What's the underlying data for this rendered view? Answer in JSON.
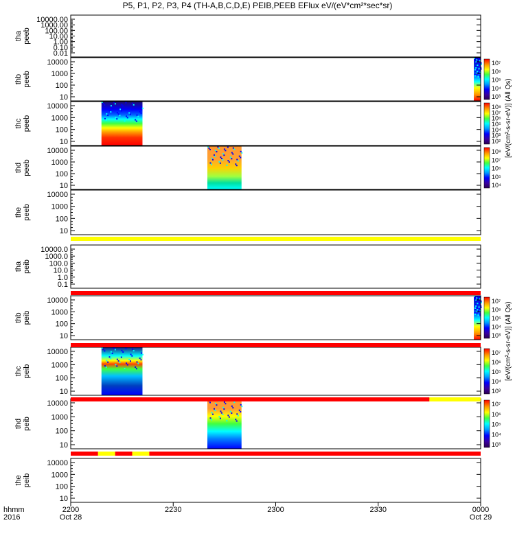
{
  "title": "P5, P1, P2, P3, P4 (TH-A,B,C,D,E) PEIB,PEEB EFlux eV/(eV*cm²*sec*sr)",
  "units_label": "[eV/(cm²-s-sr-eV)] (All Qs)",
  "colors": {
    "red": "#ff0000",
    "yellow": "#ffff00",
    "orange": "#ff9933",
    "cyan": "#00ffff",
    "blue": "#0000ff",
    "navy": "#1a1a80",
    "purple": "#6b2fa0",
    "black": "#000000"
  },
  "chart_data": [
    {
      "type": "heatmap",
      "ylabel": [
        "tha",
        "peeb"
      ],
      "ticks": [
        "10000.00",
        "1000.00",
        "100.00",
        "10.00",
        "1.00",
        "0.10",
        "0.01"
      ],
      "log": true,
      "data": "none",
      "colorbar": false
    },
    {
      "type": "heatmap",
      "ylabel": [
        "thb",
        "peeb"
      ],
      "ticks": [
        "10000",
        "1000",
        "100",
        "10"
      ],
      "log": true,
      "colorbar": true,
      "data_interval": [
        "2358",
        "2400"
      ]
    },
    {
      "type": "heatmap",
      "ylabel": [
        "thc",
        "peeb"
      ],
      "ticks": [
        "10000",
        "1000",
        "100",
        "10"
      ],
      "log": true,
      "colorbar": true,
      "data_interval": [
        "2209",
        "2221"
      ]
    },
    {
      "type": "heatmap",
      "ylabel": [
        "thd",
        "peeb"
      ],
      "ticks": [
        "10000",
        "1000",
        "100",
        "10"
      ],
      "log": true,
      "colorbar": true,
      "data_interval": [
        "2240",
        "2250"
      ]
    },
    {
      "type": "heatmap",
      "ylabel": [
        "the",
        "peeb"
      ],
      "ticks": [
        "10000",
        "1000",
        "100",
        "10"
      ],
      "log": true,
      "colorbar": false,
      "data": "none"
    },
    {
      "type": "heatmap",
      "ylabel": [
        "tha",
        "peib"
      ],
      "ticks": [
        "10000.0",
        "1000.0",
        "100.0",
        "10.0",
        "1.0",
        "0.1"
      ],
      "log": true,
      "colorbar": false,
      "data": "none"
    },
    {
      "type": "heatmap",
      "ylabel": [
        "thb",
        "peib"
      ],
      "ticks": [
        "10000",
        "1000",
        "100",
        "10"
      ],
      "log": true,
      "colorbar": true,
      "data_interval": [
        "2358",
        "2400"
      ]
    },
    {
      "type": "heatmap",
      "ylabel": [
        "thc",
        "peib"
      ],
      "ticks": [
        "10000",
        "1000",
        "100",
        "10"
      ],
      "log": true,
      "colorbar": true,
      "data_interval": [
        "2209",
        "2221"
      ]
    },
    {
      "type": "heatmap",
      "ylabel": [
        "thd",
        "peib"
      ],
      "ticks": [
        "10000",
        "1000",
        "100",
        "10"
      ],
      "log": true,
      "colorbar": true,
      "data_interval": [
        "2240",
        "2250"
      ]
    },
    {
      "type": "heatmap",
      "ylabel": [
        "the",
        "peib"
      ],
      "ticks": [
        "10000",
        "1000",
        "100",
        "10"
      ],
      "log": true,
      "colorbar": false,
      "data": "none"
    }
  ],
  "colorbars": [
    {
      "panel": 1,
      "ticks": [
        "10⁷",
        "10⁶",
        "10⁵",
        "10⁴",
        "10³"
      ]
    },
    {
      "panel": 2,
      "ticks": [
        "10⁸",
        "10⁷",
        "10⁶",
        "10⁵",
        "10⁴",
        "10³",
        "10²"
      ]
    },
    {
      "panel": 3,
      "ticks": [
        "10⁸",
        "10⁷",
        "10⁶",
        "10⁵",
        "10⁴"
      ]
    },
    {
      "panel": 6,
      "ticks": [
        "10⁷",
        "10⁶",
        "10⁵",
        "10⁴",
        "10³"
      ]
    },
    {
      "panel": 7,
      "ticks": [
        "10⁷",
        "10⁶",
        "10⁵",
        "10⁴",
        "10³"
      ]
    },
    {
      "panel": 8,
      "ticks": [
        "10⁷",
        "10⁶",
        "10⁵",
        "10⁴",
        "10³"
      ]
    }
  ],
  "status_bars": [
    {
      "after_panel": 4,
      "segments": [
        {
          "from": "2200",
          "to": "2400",
          "color": "yellow"
        }
      ]
    },
    {
      "after_panel": 5,
      "segments": [
        {
          "from": "2200",
          "to": "2400",
          "color": "red"
        }
      ]
    },
    {
      "after_panel": 6,
      "segments": [
        {
          "from": "2200",
          "to": "2400",
          "color": "red"
        }
      ]
    },
    {
      "after_panel": 7,
      "segments": [
        {
          "from": "2200",
          "to": "2345",
          "color": "red"
        },
        {
          "from": "2345",
          "to": "2400",
          "color": "yellow"
        }
      ]
    },
    {
      "after_panel": 8,
      "segments": [
        {
          "from": "2200",
          "to": "2208",
          "color": "red"
        },
        {
          "from": "2208",
          "to": "2213",
          "color": "yellow"
        },
        {
          "from": "2213",
          "to": "2218",
          "color": "red"
        },
        {
          "from": "2218",
          "to": "2223",
          "color": "yellow"
        },
        {
          "from": "2223",
          "to": "2400",
          "color": "red"
        }
      ]
    }
  ],
  "x_axis": {
    "row_label": "hhmm",
    "year": "2016",
    "ticks": [
      {
        "label": "2200",
        "date": "Oct 28"
      },
      {
        "label": "2230",
        "date": ""
      },
      {
        "label": "2300",
        "date": ""
      },
      {
        "label": "2330",
        "date": ""
      },
      {
        "label": "0000",
        "date": "Oct 29"
      }
    ]
  }
}
